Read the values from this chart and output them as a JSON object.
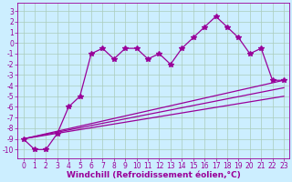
{
  "xlabel": "Windchill (Refroidissement éolien,°C)",
  "bg_color": "#cceeff",
  "grid_color": "#aaccbb",
  "line_color": "#990099",
  "xlim": [
    -0.5,
    23.5
  ],
  "ylim": [
    -10.8,
    3.8
  ],
  "xticks": [
    0,
    1,
    2,
    3,
    4,
    5,
    6,
    7,
    8,
    9,
    10,
    11,
    12,
    13,
    14,
    15,
    16,
    17,
    18,
    19,
    20,
    21,
    22,
    23
  ],
  "yticks": [
    3,
    2,
    1,
    0,
    -1,
    -2,
    -3,
    -4,
    -5,
    -6,
    -7,
    -8,
    -9,
    -10
  ],
  "line1_x": [
    0,
    1,
    2,
    3,
    4,
    5,
    6,
    7,
    8,
    9,
    10,
    11,
    12,
    13,
    14,
    15,
    16,
    17,
    18,
    19,
    20,
    21,
    22,
    23
  ],
  "line1_y": [
    -9.0,
    -10.0,
    -10.0,
    -8.5,
    -6.0,
    -5.0,
    -1.0,
    -0.5,
    -1.5,
    -0.5,
    -0.5,
    -1.5,
    -1.0,
    -2.0,
    -0.5,
    0.5,
    1.5,
    2.5,
    1.5,
    0.5,
    -1.0,
    -0.5,
    -3.5,
    -3.5
  ],
  "line2_x": [
    0,
    23
  ],
  "line2_y": [
    -9.0,
    -3.5
  ],
  "line3_x": [
    0,
    23
  ],
  "line3_y": [
    -9.0,
    -4.2
  ],
  "line4_x": [
    0,
    23
  ],
  "line4_y": [
    -9.0,
    -5.0
  ],
  "marker": "*",
  "markersize": 4,
  "linewidth": 0.9,
  "fontsize_tick": 5.5,
  "fontsize_label": 6.5
}
